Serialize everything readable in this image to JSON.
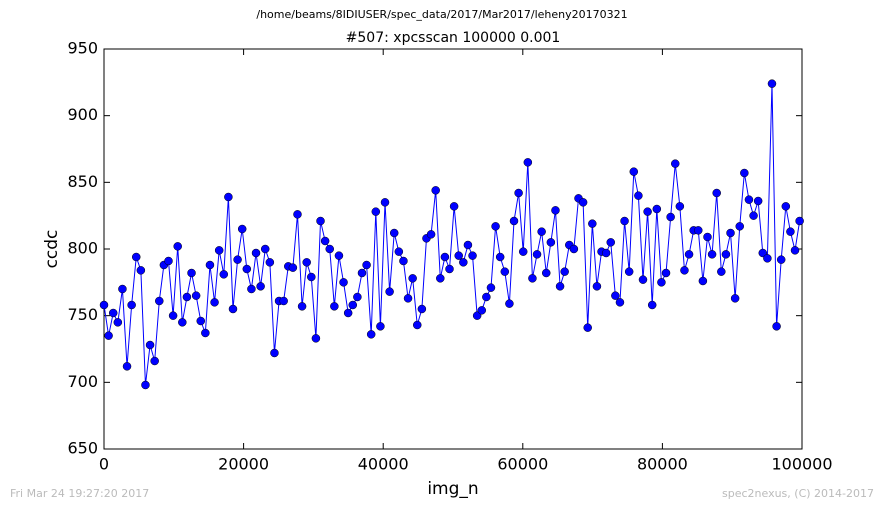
{
  "chart_data": {
    "type": "line",
    "suptitle": "/home/beams/8IDIUSER/spec_data/2017/Mar2017/leheny20170321",
    "title": "#507: xpcsscan 100000 0.001",
    "xlabel": "img_n",
    "ylabel": "ccdc",
    "footer_left": "Fri Mar 24 19:27:20 2017",
    "footer_right": "spec2nexus, (C) 2014-2017",
    "x": [
      0,
      660,
      1320,
      1980,
      2640,
      3300,
      3960,
      4620,
      5280,
      5940,
      6600,
      7260,
      7920,
      8580,
      9240,
      9900,
      10560,
      11220,
      11880,
      12540,
      13200,
      13860,
      14520,
      15180,
      15840,
      16500,
      17160,
      17820,
      18480,
      19140,
      19800,
      20460,
      21120,
      21780,
      22440,
      23100,
      23760,
      24420,
      25080,
      25740,
      26400,
      27060,
      27720,
      28380,
      29040,
      29700,
      30360,
      31020,
      31680,
      32340,
      33000,
      33660,
      34320,
      34980,
      35640,
      36300,
      36960,
      37620,
      38280,
      38940,
      39600,
      40260,
      40920,
      41580,
      42240,
      42900,
      43560,
      44220,
      44880,
      45540,
      46200,
      46860,
      47520,
      48180,
      48840,
      49500,
      50160,
      50820,
      51480,
      52140,
      52800,
      53460,
      54120,
      54780,
      55440,
      56100,
      56760,
      57420,
      58080,
      58740,
      59400,
      60060,
      60720,
      61380,
      62040,
      62700,
      63360,
      64020,
      64680,
      65340,
      66000,
      66660,
      67320,
      67980,
      68640,
      69300,
      69960,
      70620,
      71280,
      71940,
      72600,
      73260,
      73920,
      74580,
      75240,
      75900,
      76560,
      77220,
      77880,
      78540,
      79200,
      79860,
      80520,
      81180,
      81840,
      82500,
      83160,
      83820,
      84480,
      85140,
      85800,
      86460,
      87120,
      87780,
      88440,
      89100,
      89760,
      90420,
      91080,
      91740,
      92400,
      93060,
      93720,
      94380,
      95040,
      95700,
      96360,
      97020,
      97680,
      98340,
      99000,
      99660
    ],
    "series": [
      {
        "name": "ccdc",
        "color": "#0000ff",
        "values": [
          758,
          735,
          752,
          745,
          770,
          712,
          758,
          794,
          784,
          698,
          728,
          716,
          761,
          788,
          791,
          750,
          802,
          745,
          764,
          782,
          765,
          746,
          737,
          788,
          760,
          799,
          781,
          839,
          755,
          792,
          815,
          785,
          770,
          797,
          772,
          800,
          790,
          722,
          761,
          761,
          787,
          786,
          826,
          757,
          790,
          779,
          733,
          821,
          806,
          800,
          757,
          795,
          775,
          752,
          758,
          764,
          782,
          788,
          736,
          828,
          742,
          835,
          768,
          812,
          798,
          791,
          763,
          778,
          743,
          755,
          808,
          811,
          844,
          778,
          794,
          785,
          832,
          795,
          790,
          803,
          795,
          750,
          754,
          764,
          771,
          817,
          794,
          783,
          759,
          821,
          842,
          798,
          865,
          778,
          796,
          813,
          782,
          805,
          829,
          772,
          783,
          803,
          800,
          838,
          835,
          741,
          819,
          772,
          798,
          797,
          805,
          765,
          760,
          821,
          783,
          858,
          840,
          777,
          828,
          758,
          830,
          775,
          782,
          824,
          864,
          832,
          784,
          796,
          814,
          814,
          776,
          809,
          796,
          842,
          783,
          796,
          812,
          763,
          817,
          857,
          837,
          825,
          836,
          797,
          793,
          924,
          742,
          792,
          832,
          813,
          799,
          821
        ]
      }
    ],
    "xlim": [
      0,
      100000
    ],
    "xticks": [
      0,
      20000,
      40000,
      60000,
      80000,
      100000
    ],
    "ylim": [
      650,
      950
    ],
    "yticks": [
      650,
      700,
      750,
      800,
      850,
      900,
      950
    ]
  }
}
